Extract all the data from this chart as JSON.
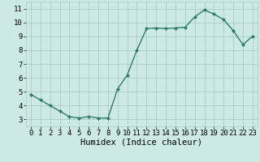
{
  "x": [
    0,
    1,
    2,
    3,
    4,
    5,
    6,
    7,
    8,
    9,
    10,
    11,
    12,
    13,
    14,
    15,
    16,
    17,
    18,
    19,
    20,
    21,
    22,
    23
  ],
  "y": [
    4.8,
    4.4,
    4.0,
    3.6,
    3.2,
    3.1,
    3.2,
    3.1,
    3.1,
    5.2,
    6.2,
    8.0,
    9.55,
    9.6,
    9.55,
    9.6,
    9.65,
    10.4,
    10.9,
    10.6,
    10.2,
    9.4,
    8.4,
    9.0
  ],
  "line_color": "#2d7d6e",
  "marker": "D",
  "marker_size": 2.0,
  "linewidth": 1.0,
  "bg_color": "#cce9e3",
  "grid_color": "#aaccc6",
  "xlabel": "Humidex (Indice chaleur)",
  "xlim": [
    -0.5,
    23.5
  ],
  "ylim": [
    2.5,
    11.5
  ],
  "yticks": [
    3,
    4,
    5,
    6,
    7,
    8,
    9,
    10,
    11
  ],
  "xticks": [
    0,
    1,
    2,
    3,
    4,
    5,
    6,
    7,
    8,
    9,
    10,
    11,
    12,
    13,
    14,
    15,
    16,
    17,
    18,
    19,
    20,
    21,
    22,
    23
  ],
  "xlabel_fontsize": 7.5,
  "tick_fontsize": 6.5
}
